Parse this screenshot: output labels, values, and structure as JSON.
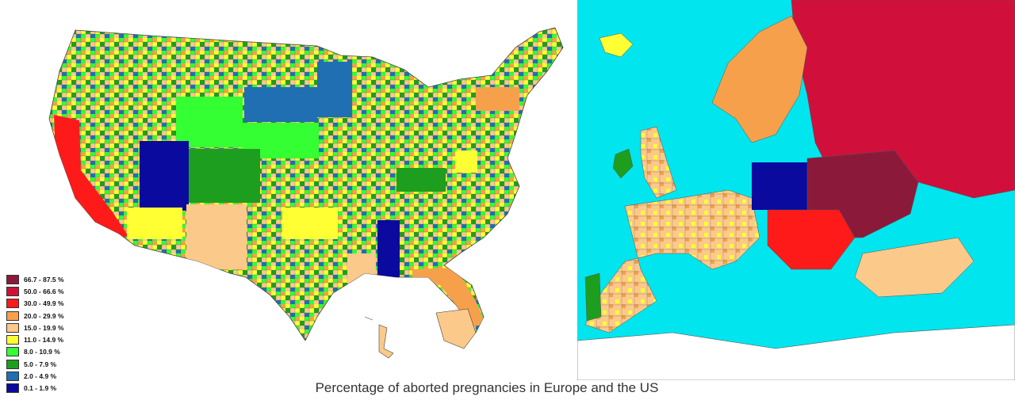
{
  "caption": "Percentage of aborted pregnancies in Europe and the US",
  "legend": [
    {
      "label": "66.7 - 87.5 %",
      "color": "#8b1a3a"
    },
    {
      "label": "50.0 - 66.6 %",
      "color": "#d0103a"
    },
    {
      "label": "30.0 - 49.9 %",
      "color": "#ff1a1a"
    },
    {
      "label": "20.0 - 29.9 %",
      "color": "#f7a04b"
    },
    {
      "label": "15.0 - 19.9 %",
      "color": "#fbc98a"
    },
    {
      "label": "11.0 - 14.9 %",
      "color": "#ffff33"
    },
    {
      "label": "8.0 - 10.9 %",
      "color": "#33ff33"
    },
    {
      "label": "5.0 - 7.9 %",
      "color": "#1e9e1e"
    },
    {
      "label": "2.0 - 4.9 %",
      "color": "#1f6fb2"
    },
    {
      "label": "0.1 - 1.9 %",
      "color": "#0a0a9e"
    }
  ],
  "maps": {
    "us": {
      "region": "United States",
      "background": "#ffffff"
    },
    "europe": {
      "region": "Europe",
      "sea_color": "#00e5ee",
      "outside_color": "#ffffff"
    }
  }
}
